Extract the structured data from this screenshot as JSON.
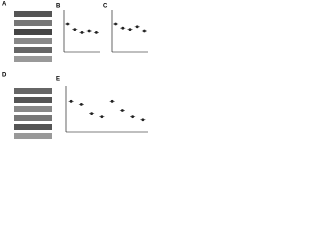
{
  "panels": {
    "a": "A",
    "b": "B",
    "c": "C",
    "d": "D",
    "e": "E"
  },
  "chart_data": [
    {
      "type": "dot",
      "categories": [
        null,
        null,
        null,
        null,
        null
      ],
      "values": [
        1,
        0.8,
        0.7,
        0.75,
        0.7
      ],
      "color": "#222222",
      "ylim": [
        0,
        1.5
      ]
    },
    {
      "type": "dot",
      "categories": [
        null,
        null,
        null,
        null,
        null
      ],
      "values": [
        1,
        0.85,
        0.8,
        0.9,
        0.75
      ],
      "color": "#222222",
      "ylim": [
        0,
        1.5
      ]
    },
    {
      "type": "dot",
      "categories": [
        null,
        null,
        null,
        null,
        null,
        null,
        null,
        null
      ],
      "values": [
        1,
        0.9,
        0.6,
        0.5,
        1,
        0.7,
        0.5,
        0.4
      ],
      "color": "#222222",
      "ylim": [
        0,
        1.5
      ]
    }
  ]
}
